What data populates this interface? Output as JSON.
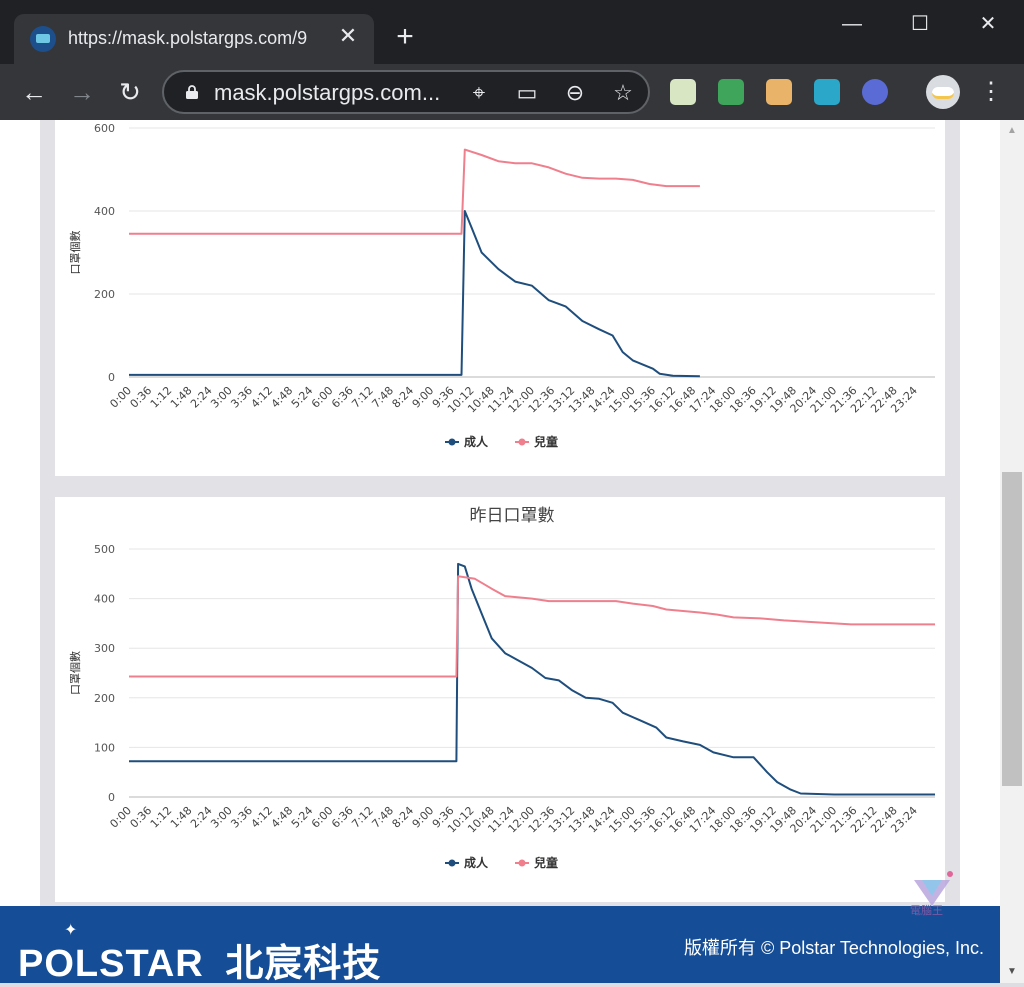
{
  "browser": {
    "tab_title": "https://mask.polstargps.com/9",
    "tab_close": "✕",
    "new_tab": "+",
    "minimize": "—",
    "maximize": "☐",
    "close": "✕",
    "url": "mask.polstargps.com...",
    "icons": {
      "back": "←",
      "forward": "→",
      "reload": "↻",
      "location": "⌖",
      "cast": "▭",
      "zoom": "⊖",
      "bookmark": "☆",
      "menu": "⋮"
    },
    "extensions": [
      "ext-icon-1",
      "ext-icon-2",
      "ext-icon-3",
      "ext-icon-4",
      "ext-icon-5"
    ]
  },
  "colors": {
    "adult": "#1f4e7d",
    "child": "#ef7f8d",
    "footer": "#154e96"
  },
  "scrollbar": {
    "up": "▲",
    "down": "▼"
  },
  "footer": {
    "brand_en": "POLSTAR",
    "brand_cn": "北宸科技",
    "copyright": "版權所有 © Polstar Technologies, Inc."
  },
  "watermark": {
    "text": "電腦王"
  },
  "charts": {
    "today": {
      "title": "",
      "ylabel": "口罩個數",
      "legend": [
        "成人",
        "兒童"
      ]
    },
    "yesterday": {
      "title": "昨日口罩數",
      "ylabel": "口罩個數",
      "legend": [
        "成人",
        "兒童"
      ]
    }
  },
  "chart_data": [
    {
      "type": "line",
      "title": "",
      "ylabel": "口罩個數",
      "xlabel": "",
      "ylim": [
        0,
        600
      ],
      "yticks": [
        0,
        200,
        400,
        600
      ],
      "categories": [
        "0:00",
        "0:36",
        "1:12",
        "1:48",
        "2:24",
        "3:00",
        "3:36",
        "4:12",
        "4:48",
        "5:24",
        "6:00",
        "6:36",
        "7:12",
        "7:48",
        "8:24",
        "9:00",
        "9:36",
        "10:12",
        "10:48",
        "11:24",
        "12:00",
        "12:36",
        "13:12",
        "13:48",
        "14:24",
        "15:00",
        "15:36",
        "16:12",
        "16:48",
        "17:24",
        "18:00",
        "18:36",
        "19:12",
        "19:48",
        "20:24",
        "21:00",
        "21:36",
        "22:12",
        "22:48",
        "23:24"
      ],
      "legend_position": "bottom",
      "series": [
        {
          "name": "成人",
          "points": [
            [
              0,
              5
            ],
            [
              9.9,
              5
            ],
            [
              10.0,
              400
            ],
            [
              10.2,
              360
            ],
            [
              10.5,
              300
            ],
            [
              11.0,
              260
            ],
            [
              11.5,
              230
            ],
            [
              12.0,
              220
            ],
            [
              12.5,
              185
            ],
            [
              13.0,
              170
            ],
            [
              13.5,
              135
            ],
            [
              14.0,
              115
            ],
            [
              14.4,
              100
            ],
            [
              14.7,
              60
            ],
            [
              15.0,
              40
            ],
            [
              15.3,
              30
            ],
            [
              15.6,
              20
            ],
            [
              15.8,
              8
            ],
            [
              16.2,
              3
            ],
            [
              17.0,
              2
            ]
          ]
        },
        {
          "name": "兒童",
          "points": [
            [
              0,
              345
            ],
            [
              9.9,
              345
            ],
            [
              10.0,
              548
            ],
            [
              10.5,
              535
            ],
            [
              11.0,
              520
            ],
            [
              11.5,
              515
            ],
            [
              12.0,
              515
            ],
            [
              12.5,
              505
            ],
            [
              13.0,
              490
            ],
            [
              13.5,
              480
            ],
            [
              14.0,
              478
            ],
            [
              14.5,
              478
            ],
            [
              15.0,
              475
            ],
            [
              15.5,
              465
            ],
            [
              16.0,
              460
            ],
            [
              17.0,
              460
            ]
          ]
        }
      ]
    },
    {
      "type": "line",
      "title": "昨日口罩數",
      "ylabel": "口罩個數",
      "xlabel": "",
      "ylim": [
        0,
        500
      ],
      "yticks": [
        0,
        100,
        200,
        300,
        400,
        500
      ],
      "categories": [
        "0:00",
        "0:36",
        "1:12",
        "1:48",
        "2:24",
        "3:00",
        "3:36",
        "4:12",
        "4:48",
        "5:24",
        "6:00",
        "6:36",
        "7:12",
        "7:48",
        "8:24",
        "9:00",
        "9:36",
        "10:12",
        "10:48",
        "11:24",
        "12:00",
        "12:36",
        "13:12",
        "13:48",
        "14:24",
        "15:00",
        "15:36",
        "16:12",
        "16:48",
        "17:24",
        "18:00",
        "18:36",
        "19:12",
        "19:48",
        "20:24",
        "21:00",
        "21:36",
        "22:12",
        "22:48",
        "23:24"
      ],
      "legend_position": "bottom",
      "series": [
        {
          "name": "成人",
          "points": [
            [
              0,
              72
            ],
            [
              9.75,
              72
            ],
            [
              9.8,
              470
            ],
            [
              10.0,
              465
            ],
            [
              10.2,
              420
            ],
            [
              10.5,
              370
            ],
            [
              10.8,
              320
            ],
            [
              11.2,
              290
            ],
            [
              11.6,
              275
            ],
            [
              12.0,
              260
            ],
            [
              12.4,
              240
            ],
            [
              12.8,
              235
            ],
            [
              13.2,
              215
            ],
            [
              13.6,
              200
            ],
            [
              14.0,
              198
            ],
            [
              14.4,
              190
            ],
            [
              14.7,
              170
            ],
            [
              15.2,
              155
            ],
            [
              15.7,
              140
            ],
            [
              16.0,
              120
            ],
            [
              16.5,
              112
            ],
            [
              17.0,
              105
            ],
            [
              17.4,
              90
            ],
            [
              18.0,
              80
            ],
            [
              18.6,
              80
            ],
            [
              19.0,
              50
            ],
            [
              19.3,
              30
            ],
            [
              19.7,
              15
            ],
            [
              20.0,
              7
            ],
            [
              21.0,
              5
            ],
            [
              24.0,
              5
            ]
          ]
        },
        {
          "name": "兒童",
          "points": [
            [
              0,
              243
            ],
            [
              9.75,
              243
            ],
            [
              9.8,
              445
            ],
            [
              10.3,
              440
            ],
            [
              10.8,
              420
            ],
            [
              11.2,
              405
            ],
            [
              12.0,
              400
            ],
            [
              12.5,
              395
            ],
            [
              13.5,
              395
            ],
            [
              14.5,
              395
            ],
            [
              15.0,
              390
            ],
            [
              15.6,
              385
            ],
            [
              16.0,
              378
            ],
            [
              17.0,
              372
            ],
            [
              17.5,
              368
            ],
            [
              18.0,
              362
            ],
            [
              18.8,
              360
            ],
            [
              19.5,
              356
            ],
            [
              20.5,
              352
            ],
            [
              21.5,
              348
            ],
            [
              24.0,
              348
            ]
          ]
        }
      ]
    }
  ]
}
